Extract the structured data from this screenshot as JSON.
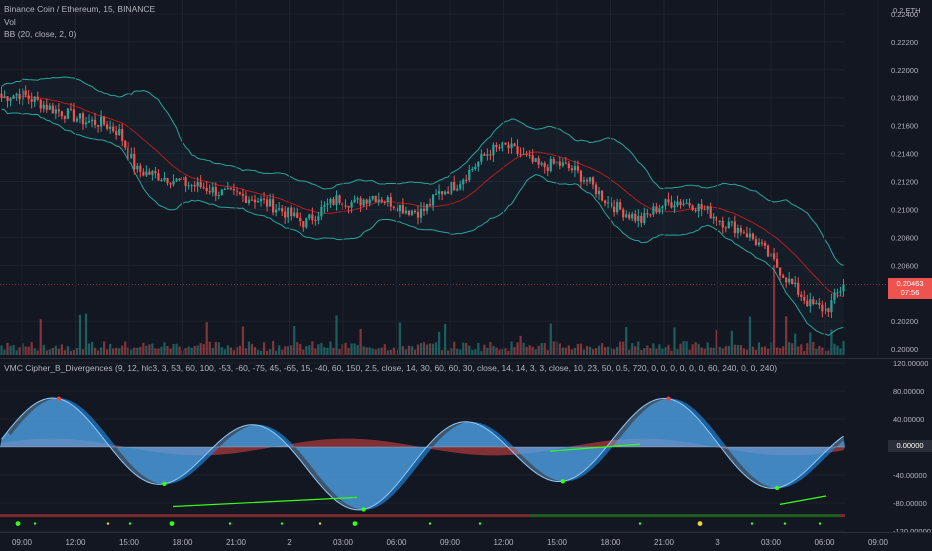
{
  "symbol_title": "Binance Coin / Ethereum, 15, BINANCE",
  "vol_label": "Vol",
  "bb_label": "BB (20, close, 2, 0)",
  "price_unit": "0.2 ETH",
  "price_ticks": [
    "0.22400",
    "0.22200",
    "0.22000",
    "0.21800",
    "0.21600",
    "0.21400",
    "0.21200",
    "0.21000",
    "0.20800",
    "0.20600",
    "0.20200",
    "0.20000"
  ],
  "last_price": "0.20463",
  "last_price_countdown": "07:56",
  "osc_label": "VMC Cipher_B_Divergences (9, 12, hlc3, 3, 53, 60, 100, -53, -60, -75, 45, -65, 15, -40, 60, 150, 2.5, close, 14, 30, 60, 60, 30, close, 14, 14, 3, 3, close, 10, 23, 50, 0.5, 720, 0, 0, 0, 0, 0, 0, 60, 240, 0, 0, 240)",
  "osc_ticks": [
    "120.00000",
    "80.00000",
    "40.00000",
    "0.00000",
    "-40.00000",
    "-80.00000",
    "-120.00000"
  ],
  "osc_last_value": "0.00000",
  "time_ticks": [
    "09:00",
    "12:00",
    "15:00",
    "18:00",
    "21:00",
    "2",
    "03:00",
    "06:00",
    "09:00",
    "12:00",
    "15:00",
    "18:00",
    "21:00",
    "3",
    "03:00",
    "06:00",
    "09:00"
  ],
  "colors": {
    "background": "#131722",
    "up": "#26a69a",
    "down": "#ef5350",
    "bb_band": "#26a69a",
    "bb_basis": "#b71c1c",
    "wave1": "#1e88e5",
    "wave2": "#90caf9",
    "money_flow_up": "#c6b522",
    "money_flow_down": "#e04646",
    "divergence": "#39ff14"
  },
  "chart_data": {
    "type": "candlestick",
    "title": "Binance Coin / Ethereum, 15, BINANCE",
    "x_ticks": [
      "09:00",
      "12:00",
      "15:00",
      "18:00",
      "21:00",
      "2",
      "03:00",
      "06:00",
      "09:00",
      "12:00",
      "15:00",
      "18:00",
      "21:00",
      "3",
      "03:00",
      "06:00",
      "09:00"
    ],
    "y_range": [
      0.1995,
      0.225
    ],
    "close_anchors": [
      0.218,
      0.2183,
      0.2178,
      0.2172,
      0.2168,
      0.2163,
      0.2162,
      0.2155,
      0.2128,
      0.2125,
      0.2122,
      0.2118,
      0.2116,
      0.2112,
      0.211,
      0.2108,
      0.2103,
      0.2097,
      0.209,
      0.21,
      0.2108,
      0.2104,
      0.211,
      0.2106,
      0.21,
      0.2098,
      0.2112,
      0.2118,
      0.213,
      0.2142,
      0.2145,
      0.2138,
      0.213,
      0.2133,
      0.2128,
      0.2118,
      0.2105,
      0.2098,
      0.2092,
      0.2102,
      0.2106,
      0.2104,
      0.2098,
      0.209,
      0.2085,
      0.2075,
      0.206,
      0.2045,
      0.2032,
      0.2028,
      0.2046
    ],
    "last": 0.20463
  }
}
